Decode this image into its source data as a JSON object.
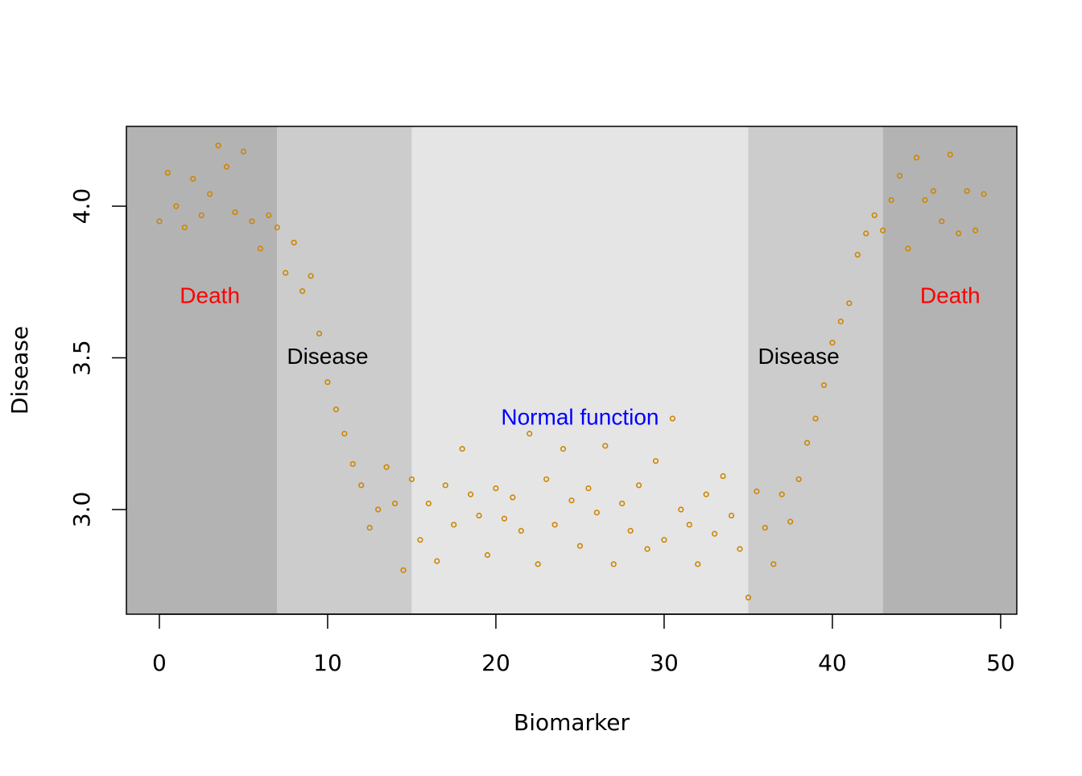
{
  "chart_data": {
    "type": "scatter",
    "x_label": "Biomarker",
    "y_label": "Disease",
    "xlim": [
      -1.96,
      50.96
    ],
    "ylim": [
      2.655,
      4.263
    ],
    "xticks": [
      0,
      10,
      20,
      30,
      40,
      50
    ],
    "yticks": [
      {
        "value": 3,
        "label": "3.0"
      },
      3.5,
      {
        "value": 4,
        "label": "4.0"
      }
    ],
    "band_edges": [
      7,
      15,
      35,
      43
    ],
    "band_colors": [
      "#b3b3b3",
      "#cccccc",
      "#e5e5e5",
      "#cccccc",
      "#b3b3b3"
    ],
    "annotations": [
      {
        "text": "Death",
        "x": 3,
        "y": 3.7,
        "color": "#ff0000"
      },
      {
        "text": "Disease",
        "x": 10,
        "y": 3.5,
        "color": "#000000"
      },
      {
        "text": "Normal function",
        "x": 25,
        "y": 3.3,
        "color": "#0000ff"
      },
      {
        "text": "Disease",
        "x": 38,
        "y": 3.5,
        "color": "#000000"
      },
      {
        "text": "Death",
        "x": 47,
        "y": 3.7,
        "color": "#ff0000"
      }
    ],
    "color": "#cd8500",
    "x": [
      0,
      0.5,
      1,
      1.5,
      2,
      2.5,
      3,
      3.5,
      4,
      4.5,
      5,
      5.5,
      6,
      6.5,
      7,
      7.5,
      8,
      8.5,
      9,
      9.5,
      10,
      10.5,
      11,
      11.5,
      12,
      12.5,
      13,
      13.5,
      14,
      14.5,
      15,
      15.5,
      16,
      16.5,
      17,
      17.5,
      18,
      18.5,
      19,
      19.5,
      20,
      20.5,
      21,
      21.5,
      22,
      22.5,
      23,
      23.5,
      24,
      24.5,
      25,
      25.5,
      26,
      26.5,
      27,
      27.5,
      28,
      28.5,
      29,
      29.5,
      30,
      30.5,
      31,
      31.5,
      32,
      32.5,
      33,
      33.5,
      34,
      34.5,
      35,
      35.5,
      36,
      36.5,
      37,
      37.5,
      38,
      38.5,
      39,
      39.5,
      40,
      40.5,
      41,
      41.5,
      42,
      42.5,
      43,
      43.5,
      44,
      44.5,
      45,
      45.5,
      46,
      46.5,
      47,
      47.5,
      48,
      48.5,
      49
    ],
    "values": [
      3.95,
      4.11,
      4.0,
      3.93,
      4.09,
      3.97,
      4.04,
      4.2,
      4.13,
      3.98,
      4.18,
      3.95,
      3.86,
      3.97,
      3.93,
      3.78,
      3.88,
      3.72,
      3.77,
      3.58,
      3.42,
      3.33,
      3.25,
      3.15,
      3.08,
      2.94,
      3.0,
      3.14,
      3.02,
      2.8,
      3.1,
      2.9,
      3.02,
      2.83,
      3.08,
      2.95,
      3.2,
      3.05,
      2.98,
      2.85,
      3.07,
      2.97,
      3.04,
      2.93,
      3.25,
      2.82,
      3.1,
      2.95,
      3.2,
      3.03,
      2.88,
      3.07,
      2.99,
      3.21,
      2.82,
      3.02,
      2.93,
      3.08,
      2.87,
      3.16,
      2.9,
      3.3,
      3.0,
      2.95,
      2.82,
      3.05,
      2.92,
      3.11,
      2.98,
      2.87,
      2.71,
      3.06,
      2.94,
      2.82,
      3.05,
      2.96,
      3.1,
      3.22,
      3.3,
      3.41,
      3.55,
      3.62,
      3.68,
      3.84,
      3.91,
      3.97,
      3.92,
      4.02,
      4.1,
      3.86,
      4.16,
      4.02,
      4.05,
      3.95,
      4.17,
      3.91,
      4.05,
      3.92,
      4.04
    ]
  }
}
